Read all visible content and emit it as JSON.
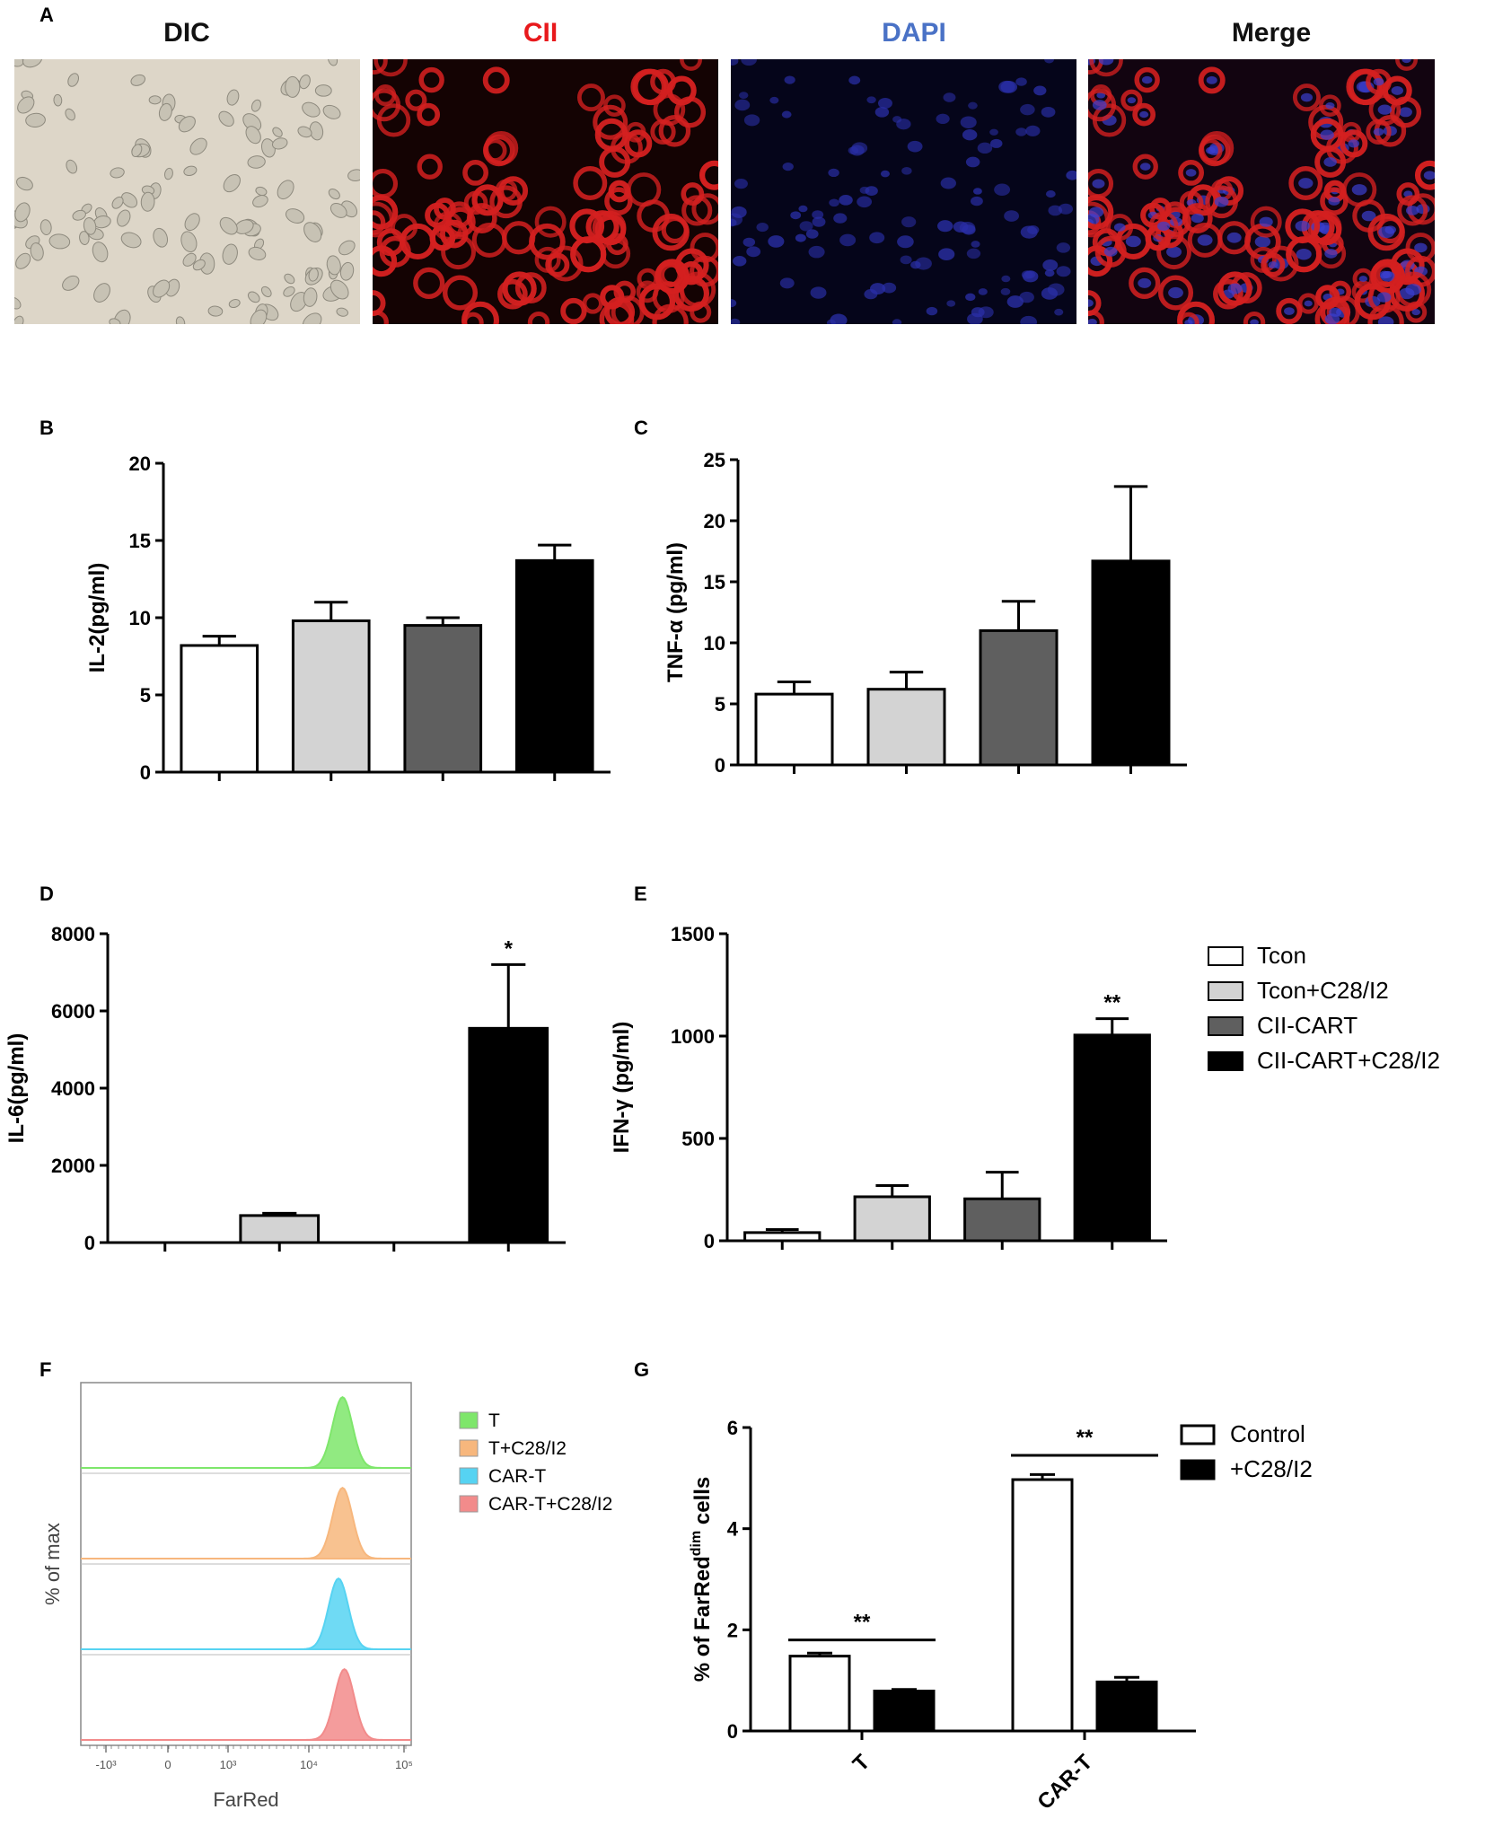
{
  "panel_a": {
    "letter": "A",
    "images": [
      {
        "label": "DIC",
        "color": "#111111",
        "icon": "brightfield-cells-image"
      },
      {
        "label": "CII",
        "color": "#e8191c",
        "icon": "red-fluorescence-cells-image"
      },
      {
        "label": "DAPI",
        "color": "#4a72c6",
        "icon": "blue-nuclei-fluorescence-image"
      },
      {
        "label": "Merge",
        "color": "#111111",
        "icon": "merged-fluorescence-image"
      }
    ]
  },
  "group_legend": {
    "entries": [
      {
        "label": "Tcon",
        "fill": "#ffffff"
      },
      {
        "label": "Tcon+C28/I2",
        "fill": "#d3d3d3"
      },
      {
        "label": "CII-CART",
        "fill": "#5f5f5f"
      },
      {
        "label": "CII-CART+C28/I2",
        "fill": "#000000"
      }
    ]
  },
  "flow_legend": {
    "entries": [
      {
        "label": "T",
        "color": "#7ee66b"
      },
      {
        "label": "T+C28/I2",
        "color": "#f7b77d"
      },
      {
        "label": "CAR-T",
        "color": "#56d3f2"
      },
      {
        "label": "CAR-T+C28/I2",
        "color": "#f28b8b"
      }
    ]
  },
  "g_legend": {
    "entries": [
      {
        "label": "Control",
        "fill": "#ffffff"
      },
      {
        "label": "+C28/I2",
        "fill": "#000000"
      }
    ]
  },
  "chart_data": [
    {
      "panel": "B",
      "type": "bar",
      "ylabel": "IL-2(pg/ml)",
      "ylim": [
        0,
        20
      ],
      "yticks": [
        0,
        5,
        10,
        15,
        20
      ],
      "categories": [
        "Tcon",
        "Tcon+C28/I2",
        "CII-CART",
        "CII-CART+C28/I2"
      ],
      "values": [
        8.2,
        9.8,
        9.5,
        13.7
      ],
      "errors": [
        0.6,
        1.2,
        0.5,
        1.0
      ],
      "significance": [
        "",
        "",
        "",
        ""
      ]
    },
    {
      "panel": "C",
      "type": "bar",
      "ylabel": "TNF-α (pg/ml)",
      "ylim": [
        0,
        25
      ],
      "yticks": [
        0,
        5,
        10,
        15,
        20,
        25
      ],
      "categories": [
        "Tcon",
        "Tcon+C28/I2",
        "CII-CART",
        "CII-CART+C28/I2"
      ],
      "values": [
        5.8,
        6.2,
        11.0,
        16.7
      ],
      "errors": [
        1.0,
        1.4,
        2.4,
        6.1
      ],
      "significance": [
        "",
        "",
        "",
        ""
      ]
    },
    {
      "panel": "D",
      "type": "bar",
      "ylabel": "IL-6(pg/ml)",
      "ylim": [
        0,
        8000
      ],
      "yticks": [
        0,
        2000,
        4000,
        6000,
        8000
      ],
      "categories": [
        "Tcon",
        "Tcon+C28/I2",
        "CII-CART",
        "CII-CART+C28/I2"
      ],
      "values": [
        0,
        700,
        0,
        5550
      ],
      "errors": [
        0,
        60,
        0,
        1650
      ],
      "significance": [
        "",
        "",
        "",
        "*"
      ]
    },
    {
      "panel": "E",
      "type": "bar",
      "ylabel": "IFN-γ (pg/ml)",
      "ylim": [
        0,
        1500
      ],
      "yticks": [
        0,
        500,
        1000,
        1500
      ],
      "categories": [
        "Tcon",
        "Tcon+C28/I2",
        "CII-CART",
        "CII-CART+C28/I2"
      ],
      "values": [
        40,
        215,
        205,
        1005
      ],
      "errors": [
        15,
        55,
        130,
        80
      ],
      "significance": [
        "",
        "",
        "",
        "**"
      ]
    },
    {
      "panel": "F",
      "type": "histogram",
      "ylabel": "% of max",
      "xlabel": "FarRed",
      "xscale": "biexponential",
      "xticks": [
        "-10³",
        "0",
        "10³",
        "10⁴",
        "10⁵"
      ],
      "series": [
        {
          "name": "T",
          "peak": 20000,
          "color": "#7ee66b"
        },
        {
          "name": "T+C28/I2",
          "peak": 20000,
          "color": "#f7b77d"
        },
        {
          "name": "CAR-T",
          "peak": 18000,
          "color": "#56d3f2"
        },
        {
          "name": "CAR-T+C28/I2",
          "peak": 21000,
          "color": "#f28b8b"
        }
      ]
    },
    {
      "panel": "G",
      "type": "bar",
      "ylabel": "% of FarRed",
      "ylabel_sup": "dim",
      "ylabel_suffix": " cells",
      "ylim": [
        0,
        6
      ],
      "yticks": [
        0,
        2,
        4,
        6
      ],
      "categories": [
        "T",
        "CAR-T"
      ],
      "series": [
        {
          "name": "Control",
          "values": [
            1.48,
            4.97
          ],
          "errors": [
            0.06,
            0.1
          ],
          "fill": "#ffffff"
        },
        {
          "name": "+C28/I2",
          "values": [
            0.79,
            0.97
          ],
          "errors": [
            0.03,
            0.09
          ],
          "fill": "#000000"
        }
      ],
      "significance": [
        "**",
        "**"
      ]
    }
  ]
}
